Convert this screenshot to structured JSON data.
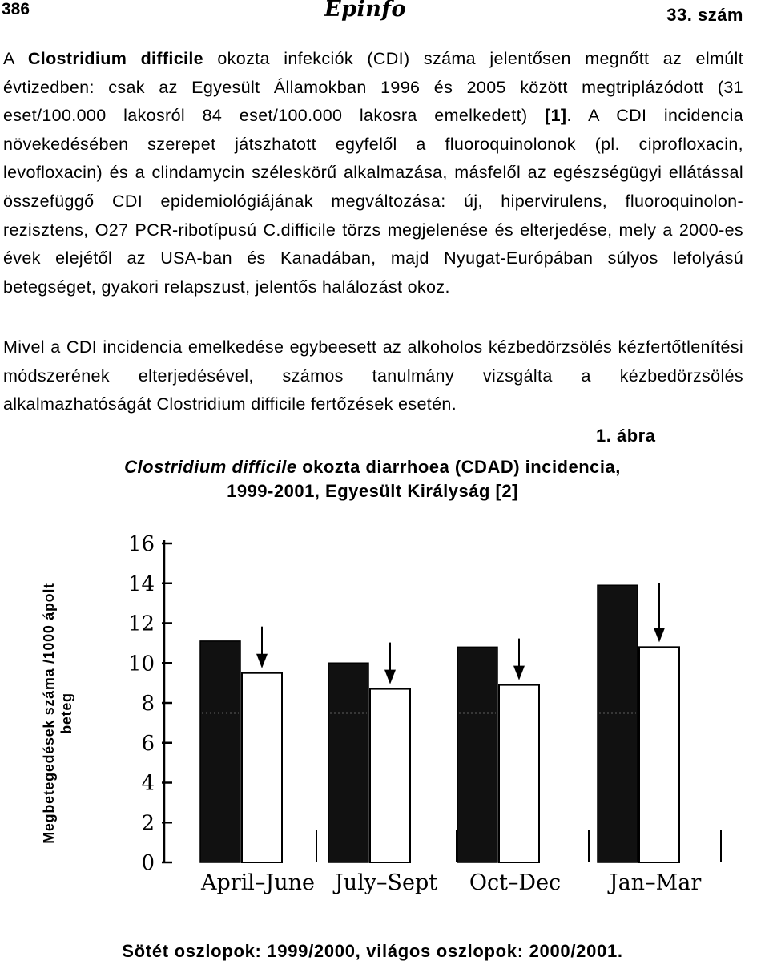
{
  "header": {
    "page_number": "386",
    "logo_text": "Epinfo",
    "issue": "33. szám"
  },
  "paragraph1": {
    "segments": [
      {
        "text": "A ",
        "bold": false
      },
      {
        "text": "Clostridium difficile",
        "bold": true
      },
      {
        "text": " okozta infekciók (CDI) száma jelentősen megnőtt az elmúlt évtizedben: csak az Egyesült Államokban 1996 és 2005 között megtriplázódott (31 eset/100.000 lakosról 84 eset/100.000 lakosra emelkedett) ",
        "bold": false
      },
      {
        "text": "[1]",
        "bold": true
      },
      {
        "text": ". A CDI incidencia növekedésében szerepet játszhatott egyfelől a fluoroquinolonok (pl. ciprofloxacin, levofloxacin) és a clindamycin széleskörű alkalmazása, másfelől az egészségügyi ellátással összefüggő CDI epidemiológiájának megváltozása: új, hipervirulens, fluoroquinolon-rezisztens, O27 PCR-ribotípusú C.difficile törzs megjelenése és elterjedése, mely a 2000-es évek elejétől az USA-ban és Kanadában, majd Nyugat-Európában súlyos lefolyású betegséget, gyakori relapszust, jelentős halálozást okoz.",
        "bold": false
      }
    ]
  },
  "paragraph2": "Mivel a CDI incidencia emelkedése egybeesett az alkoholos kézbedörzsölés kézfertőtlenítési módszerének elterjedésével, számos tanulmány vizsgálta a kézbedörzsölés alkalmazhatóságát Clostridium difficile fertőzések esetén.",
  "figure": {
    "label": "1. ábra",
    "title_italic": "Clostridium difficile",
    "title_rest": " okozta diarrhoea (CDAD) incidencia,",
    "title_line2": "1999-2001, Egyesült Királyság [2]",
    "caption": "Sötét oszlopok: 1999/2000, világos oszlopok: 2000/2001."
  },
  "chart_data": {
    "type": "bar",
    "title": "Clostridium difficile okozta diarrhoea (CDAD) incidencia, 1999-2001, Egyesült Királyság [2]",
    "ylabel_line1": "Megbetegedések száma /1000 ápolt",
    "ylabel_line2": "beteg",
    "xlabel": "",
    "categories": [
      "April–June",
      "July–Sept",
      "Oct–Dec",
      "Jan–Mar"
    ],
    "series": [
      {
        "name": "1999/2000",
        "values": [
          11.1,
          10.0,
          10.8,
          13.9
        ],
        "color": "#111111"
      },
      {
        "name": "2000/2001",
        "values": [
          9.5,
          8.7,
          8.9,
          10.8
        ],
        "color": "#ffffff"
      }
    ],
    "ylim": [
      0,
      16
    ],
    "yticks": [
      "0",
      "2",
      "4",
      "6",
      "8",
      "10",
      "12",
      "14",
      "16"
    ],
    "legend": "Sötét oszlopok: 1999/2000, világos oszlopok: 2000/2001.",
    "annotations": "downward arrows above each light bar",
    "grid": false
  }
}
